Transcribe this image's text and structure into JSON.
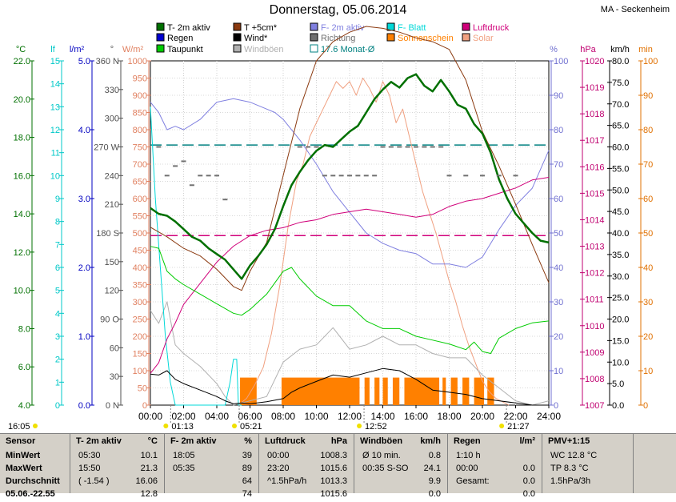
{
  "title": "Donnerstag, 05.06.2014",
  "station": "MA - Seckenheim",
  "colors": {
    "temp2m": "#007000",
    "temp5cm": "#8b3a10",
    "humidity": "#8080e0",
    "leaf": "#00d8d8",
    "pressure": "#d0007a",
    "rain": "#0000d0",
    "wind": "#000000",
    "direction": "#707070",
    "sunshine": "#ff8000",
    "dew": "#00cc00",
    "gust": "#b0b0b0",
    "month": "#008080",
    "solar": "#f0a080"
  },
  "legend": [
    {
      "label": "T- 2m aktiv",
      "style": "box",
      "color": "#007000"
    },
    {
      "label": "T +5cm*",
      "style": "box",
      "color": "#8b3a10"
    },
    {
      "label": "F- 2m aktiv",
      "style": "box",
      "color": "#8080e0"
    },
    {
      "label": "F- Blatt",
      "style": "box",
      "color": "#00d8d8"
    },
    {
      "label": "Luftdruck",
      "style": "box",
      "color": "#d0007a"
    },
    {
      "label": "Regen",
      "style": "box",
      "color": "#0000d0"
    },
    {
      "label": "Wind*",
      "style": "box",
      "color": "#000000"
    },
    {
      "label": "Richtung",
      "style": "box",
      "color": "#707070"
    },
    {
      "label": "Sonnenschein",
      "style": "box",
      "color": "#ff8000"
    },
    {
      "label": "Solar",
      "style": "box",
      "color": "#f0a080"
    },
    {
      "label": "Taupunkt",
      "style": "box",
      "color": "#00cc00"
    },
    {
      "label": "Windböen",
      "style": "box",
      "color": "#b0b0b0"
    },
    {
      "label": "17.6 Monat-Ø",
      "style": "hollow",
      "color": "#008080"
    }
  ],
  "axis_units": {
    "temp": "°C",
    "leaf": "lf",
    "rain": "l/m²",
    "dir": "°",
    "solar": "W/m²",
    "hum": "%",
    "press": "hPa",
    "wind": "km/h",
    "sun": "min"
  },
  "chart_data": {
    "type": "line",
    "x_range": [
      0,
      24
    ],
    "x_ticks": [
      "00:00",
      "02:00",
      "04:00",
      "06:00",
      "08:00",
      "10:00",
      "12:00",
      "14:00",
      "16:00",
      "18:00",
      "20:00",
      "22:00",
      "24:00"
    ],
    "axes": {
      "temp": {
        "range": [
          4,
          22
        ],
        "ticks": [
          "4.0",
          "6.0",
          "8.0",
          "10.0",
          "12.0",
          "14.0",
          "16.0",
          "18.0",
          "20.0",
          "22.0"
        ]
      },
      "leaf": {
        "range": [
          0,
          15
        ],
        "ticks": [
          "0",
          "1",
          "2",
          "3",
          "4",
          "5",
          "6",
          "7",
          "8",
          "9",
          "10",
          "11",
          "12",
          "13",
          "14",
          "15"
        ]
      },
      "rain": {
        "range": [
          0,
          5
        ],
        "ticks": [
          "0.0",
          "1.0",
          "2.0",
          "3.0",
          "4.0",
          "5.0"
        ]
      },
      "dir": {
        "range": [
          0,
          360
        ],
        "ticks": [
          "0 N",
          "30",
          "60",
          "90 O",
          "120",
          "150",
          "180 S",
          "210",
          "240",
          "270 W",
          "300",
          "330",
          "360 N"
        ]
      },
      "solar": {
        "range": [
          0,
          1000
        ],
        "ticks": [
          "0",
          "50",
          "100",
          "150",
          "200",
          "250",
          "300",
          "350",
          "400",
          "450",
          "500",
          "550",
          "600",
          "650",
          "700",
          "750",
          "800",
          "850",
          "900",
          "950",
          "1000"
        ]
      },
      "hum": {
        "range": [
          0,
          100
        ],
        "ticks": [
          "0",
          "10",
          "20",
          "30",
          "40",
          "50",
          "60",
          "70",
          "80",
          "90",
          "100"
        ]
      },
      "press": {
        "range": [
          1007,
          1020
        ],
        "ticks": [
          "1007",
          "1008",
          "1009",
          "1010",
          "1011",
          "1012",
          "1013",
          "1014",
          "1015",
          "1016",
          "1017",
          "1018",
          "1019",
          "1020"
        ]
      },
      "wind": {
        "range": [
          0,
          80
        ],
        "ticks": [
          "0.0",
          "5.0",
          "10.0",
          "15.0",
          "20.0",
          "25.0",
          "30.0",
          "35.0",
          "40.0",
          "45.0",
          "50.0",
          "55.0",
          "60.0",
          "65.0",
          "70.0",
          "75.0",
          "80.0"
        ]
      },
      "sun": {
        "range": [
          0,
          100
        ],
        "ticks": [
          "0",
          "10",
          "20",
          "30",
          "40",
          "50",
          "60",
          "70",
          "80",
          "90",
          "100"
        ]
      }
    },
    "monthly_avg_temp": 17.6,
    "series": [
      {
        "name": "T- 2m aktiv",
        "key": "temp2m",
        "axis": "temp",
        "x": [
          0,
          0.5,
          1,
          1.5,
          2,
          2.5,
          3,
          3.5,
          4,
          4.5,
          5,
          5.5,
          6,
          6.5,
          7,
          7.5,
          8,
          8.5,
          9,
          9.5,
          10,
          10.5,
          11,
          11.5,
          12,
          12.5,
          13,
          13.5,
          14,
          14.5,
          15,
          15.5,
          16,
          16.5,
          17,
          17.5,
          18,
          18.5,
          19,
          19.5,
          20,
          20.5,
          21,
          21.5,
          22,
          22.5,
          23,
          23.5,
          24
        ],
        "y": [
          14.3,
          14.0,
          13.9,
          13.6,
          13.2,
          12.8,
          12.6,
          12.2,
          11.9,
          11.6,
          11.1,
          10.6,
          11.3,
          11.8,
          12.4,
          13.2,
          14.4,
          15.5,
          16.2,
          16.8,
          17.3,
          17.6,
          17.5,
          17.9,
          18.3,
          18.6,
          19.3,
          20.0,
          20.5,
          20.9,
          20.6,
          21.1,
          21.3,
          20.7,
          20.4,
          21.0,
          20.4,
          19.7,
          19.5,
          18.7,
          18.2,
          17.2,
          15.8,
          14.8,
          14.0,
          13.5,
          13.0,
          12.6,
          12.5
        ]
      },
      {
        "name": "T +5cm*",
        "key": "temp5cm",
        "axis": "temp",
        "x": [
          0,
          1,
          2,
          3,
          4,
          5,
          5.5,
          6,
          7,
          8,
          9,
          10,
          11,
          12,
          13,
          14,
          15,
          16,
          17,
          18,
          19,
          20,
          21,
          22,
          23,
          24
        ],
        "y": [
          13.3,
          12.8,
          12.2,
          11.8,
          11.1,
          10.2,
          10.0,
          11.0,
          12.5,
          16.0,
          19.5,
          22.0,
          23.0,
          23.5,
          23.8,
          23.7,
          23.5,
          23.2,
          23.0,
          22.6,
          21.0,
          18.3,
          16.5,
          14.5,
          12.4,
          10.4
        ]
      },
      {
        "name": "Taupunkt",
        "key": "dew",
        "axis": "temp",
        "x": [
          0,
          0.5,
          1,
          1.5,
          2,
          3,
          4,
          5,
          5.5,
          6,
          7,
          8,
          8.5,
          9,
          10,
          11,
          12,
          13,
          14,
          15,
          16,
          17,
          18,
          19,
          19.5,
          20,
          20.5,
          21,
          22,
          23,
          24
        ],
        "y": [
          12.3,
          12.2,
          11.0,
          10.6,
          10.3,
          9.8,
          9.3,
          8.8,
          8.7,
          9.0,
          9.8,
          11.0,
          11.2,
          10.6,
          9.7,
          9.2,
          9.2,
          8.4,
          8.0,
          8.0,
          7.6,
          7.4,
          7.2,
          6.9,
          7.3,
          6.8,
          6.7,
          7.5,
          8.0,
          8.3,
          8.4
        ]
      },
      {
        "name": "F- 2m aktiv",
        "key": "humidity",
        "axis": "hum",
        "x": [
          0,
          0.5,
          1,
          1.5,
          2,
          3,
          4,
          5,
          6,
          7,
          7.5,
          8,
          9,
          10,
          11,
          12,
          13,
          14,
          15,
          16,
          17,
          18,
          19,
          20,
          21,
          22,
          23,
          24
        ],
        "y": [
          88,
          85,
          80,
          81,
          80,
          83,
          88,
          89,
          88,
          86,
          85,
          83,
          77,
          70,
          62,
          56,
          50,
          47,
          45,
          44,
          41,
          41,
          40,
          43,
          51,
          58,
          63,
          74
        ]
      },
      {
        "name": "Luftdruck",
        "key": "pressure",
        "axis": "press",
        "x": [
          0,
          0.5,
          1,
          1.5,
          2,
          3,
          4,
          5,
          6,
          7,
          8,
          9,
          10,
          11,
          12,
          13,
          14,
          15,
          16,
          17,
          18,
          19,
          20,
          21,
          22,
          23,
          24
        ],
        "y": [
          1008.2,
          1008.6,
          1009.5,
          1010.1,
          1010.8,
          1011.6,
          1012.4,
          1013.0,
          1013.4,
          1013.6,
          1013.7,
          1013.9,
          1014.0,
          1014.2,
          1014.3,
          1014.4,
          1014.3,
          1014.2,
          1014.1,
          1014.2,
          1014.5,
          1014.7,
          1014.8,
          1015.0,
          1015.2,
          1015.5,
          1015.6
        ]
      },
      {
        "name": "Wind*",
        "key": "wind",
        "axis": "wind",
        "x": [
          0,
          0.5,
          1,
          1.5,
          2,
          3,
          4,
          4.5,
          5,
          5.5,
          6,
          7,
          8,
          8.5,
          9,
          10,
          11,
          12,
          13,
          14,
          15,
          16,
          17,
          18,
          19,
          20,
          21,
          22,
          23,
          24
        ],
        "y": [
          7.2,
          7.0,
          8.0,
          6.0,
          5.0,
          3.5,
          2.0,
          1.0,
          0.3,
          0.5,
          0.3,
          0.8,
          1.5,
          3.0,
          4.0,
          5.5,
          7.0,
          6.5,
          7.5,
          8.5,
          8.0,
          6.0,
          3.5,
          3.0,
          2.5,
          1.5,
          1.0,
          0.5,
          0.0,
          0.0
        ]
      },
      {
        "name": "Windböen",
        "key": "gust",
        "axis": "wind",
        "x": [
          0,
          0.5,
          1,
          1.5,
          2,
          3,
          4,
          4.5,
          5,
          6,
          7,
          8,
          9,
          10,
          11,
          12,
          13,
          14,
          15,
          16,
          17,
          18,
          19,
          20,
          21,
          22,
          23,
          24
        ],
        "y": [
          22,
          19,
          24,
          14,
          12,
          9,
          5,
          2,
          0,
          1,
          2,
          10,
          13,
          14,
          18,
          13,
          14,
          16,
          14,
          14,
          12,
          11,
          11,
          7,
          4,
          1,
          0,
          1
        ]
      },
      {
        "name": "F- Blatt",
        "key": "leaf",
        "axis": "leaf",
        "x": [
          0,
          0.3,
          0.6,
          0.9,
          1.2,
          1.5,
          1.8,
          4.5,
          4.8,
          5.0,
          5.2,
          5.3,
          5.5
        ],
        "y": [
          13,
          9,
          6,
          3,
          1,
          0,
          0,
          0,
          1,
          2,
          2,
          0,
          0
        ]
      },
      {
        "name": "Solar",
        "key": "solar",
        "axis": "solar",
        "x": [
          5.3,
          5.8,
          6.3,
          6.8,
          7.3,
          7.8,
          8.3,
          8.8,
          9.2,
          9.6,
          10.0,
          10.4,
          10.8,
          11.2,
          11.6,
          12.0,
          12.4,
          12.8,
          13.2,
          13.6,
          14.0,
          14.4,
          14.8,
          15.2,
          15.6,
          16.0,
          16.4,
          16.8,
          17.2,
          17.6,
          18.0,
          18.4,
          18.8,
          19.2,
          19.6,
          20.0,
          20.4,
          20.8,
          21.2,
          21.6
        ],
        "y": [
          0,
          20,
          60,
          110,
          210,
          350,
          520,
          650,
          700,
          780,
          820,
          860,
          900,
          940,
          920,
          940,
          900,
          950,
          920,
          880,
          940,
          900,
          820,
          860,
          780,
          700,
          620,
          560,
          500,
          430,
          360,
          300,
          230,
          170,
          120,
          70,
          40,
          20,
          10,
          0
        ]
      },
      {
        "name": "Richtung",
        "key": "direction",
        "axis": "dir",
        "x": [
          0.5,
          1,
          1.5,
          2,
          2.5,
          3,
          3.5,
          4,
          4.5,
          9.0,
          9.5,
          10,
          10.5,
          11,
          11.5,
          12.0,
          12.5,
          13,
          13.5,
          14,
          14.5,
          15,
          15.5,
          16,
          16.5,
          17,
          17.5,
          18,
          19,
          20,
          21,
          22
        ],
        "y": [
          270,
          240,
          250,
          255,
          230,
          240,
          240,
          240,
          215,
          270,
          270,
          270,
          240,
          240,
          240,
          240,
          240,
          240,
          240,
          270,
          270,
          270,
          270,
          270,
          270,
          270,
          270,
          240,
          240,
          240,
          240,
          240
        ]
      }
    ],
    "sunshine_bars": [
      [
        5.4,
        6.4
      ],
      [
        7.9,
        12.6
      ],
      [
        12.9,
        13.2
      ],
      [
        13.5,
        13.8
      ],
      [
        14.0,
        14.3
      ],
      [
        14.6,
        15.0
      ],
      [
        15.3,
        17.4
      ],
      [
        17.6,
        17.8
      ],
      [
        18.1,
        18.5
      ],
      [
        18.8,
        19.2
      ],
      [
        19.5,
        20.1
      ],
      [
        20.3,
        20.7
      ]
    ],
    "sunshine_bar_level": 8,
    "markers": [
      {
        "label": "01:13",
        "hour": 1.22
      },
      {
        "label": "05:21",
        "hour": 5.35
      },
      {
        "label": "12:52",
        "hour": 12.87
      },
      {
        "label": "21:27",
        "hour": 21.45
      }
    ],
    "sunrise_label": "16:05"
  },
  "table": {
    "columns": [
      {
        "title": "Sensor",
        "unit": "",
        "rows": [
          [
            "MinWert",
            ""
          ],
          [
            "MaxWert",
            ""
          ],
          [
            "Durchschnitt",
            ""
          ],
          [
            "05.06.-22.55",
            ""
          ]
        ]
      },
      {
        "title": "T- 2m aktiv",
        "unit": "°C",
        "rows": [
          [
            "05:30",
            "10.1"
          ],
          [
            "15:50",
            "21.3"
          ],
          [
            "( -1.54 )",
            "16.06"
          ],
          [
            "",
            "12.8"
          ]
        ]
      },
      {
        "title": "F- 2m aktiv",
        "unit": "%",
        "rows": [
          [
            "18:05",
            "39"
          ],
          [
            "05:35",
            "89"
          ],
          [
            "",
            "64"
          ],
          [
            "",
            "74"
          ]
        ]
      },
      {
        "title": "Luftdruck",
        "unit": "hPa",
        "rows": [
          [
            "00:00",
            "1008.3"
          ],
          [
            "23:20",
            "1015.6"
          ],
          [
            "^1.5hPa/h",
            "1013.3"
          ],
          [
            "",
            "1015.6"
          ]
        ]
      },
      {
        "title": "Windböen",
        "unit": "km/h",
        "rows": [
          [
            "Ø 10 min.",
            "0.8"
          ],
          [
            "00:35  S-SO",
            "24.1"
          ],
          [
            "",
            "9.9"
          ],
          [
            "",
            "0.0"
          ]
        ]
      },
      {
        "title": "Regen",
        "unit": "l/m²",
        "rows": [
          [
            "1:10 h",
            ""
          ],
          [
            "00:00",
            "0.0"
          ],
          [
            "Gesamt:",
            "0.0"
          ],
          [
            "",
            "0.0"
          ]
        ]
      },
      {
        "title": "PMV+1:15",
        "unit": "",
        "rows": [
          [
            "WC 12.8 °C",
            ""
          ],
          [
            "TP 8.3 °C",
            ""
          ],
          [
            "1.5hPa/3h",
            ""
          ],
          [
            "",
            ""
          ]
        ]
      }
    ]
  }
}
